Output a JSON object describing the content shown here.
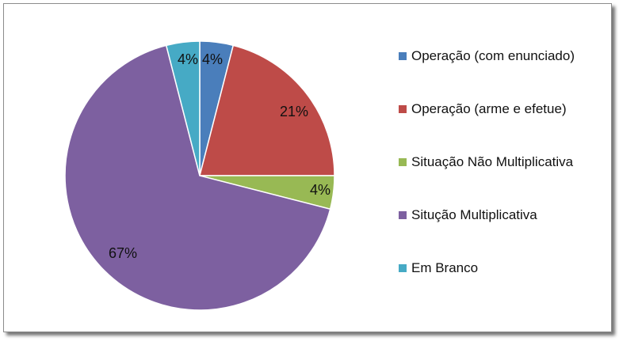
{
  "chart_data": {
    "type": "pie",
    "title": "",
    "categories": [
      "Operação (com enunciado)",
      "Operação (arme e efetue)",
      "Situação Não Multiplicativa",
      "Situção Multiplicativa",
      "Em Branco"
    ],
    "values": [
      4,
      21,
      4,
      67,
      4
    ],
    "data_labels": [
      "4%",
      "21%",
      "4%",
      "67%",
      "4%"
    ],
    "colors": [
      "#4a7ebb",
      "#be4b48",
      "#98b954",
      "#7d60a0",
      "#46aac5"
    ],
    "legend_position": "right",
    "start_angle": "12 o'clock",
    "direction": "clockwise"
  }
}
